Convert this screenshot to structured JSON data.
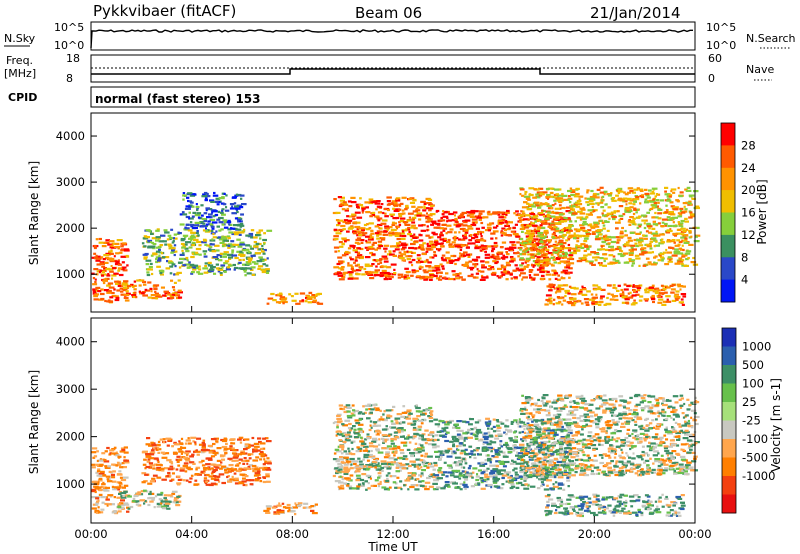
{
  "header": {
    "radar": "Pykkvibaer (fitACF)",
    "beam": "Beam 06",
    "date": "21/Jan/2014"
  },
  "params": {
    "nsky_label": "N.Sky",
    "nsky_ticks": [
      "10^5",
      "10^0"
    ],
    "nsearch_label": "N.Search",
    "nsearch_ticks": [
      "10^5",
      "10^0"
    ],
    "freq_label_1": "Freq.",
    "freq_label_2": "[MHz]",
    "freq_ticks": [
      "18",
      "8"
    ],
    "nave_label": "Nave",
    "nave_ticks": [
      "60",
      "0"
    ],
    "cpid_label": "CPID",
    "cpid_text": "normal (fast stereo) 153"
  },
  "chart_data": [
    {
      "type": "heatmap",
      "name": "power",
      "ylabel": "Slant Range [km]",
      "yticks": [
        "4000",
        "3000",
        "2000",
        "1000"
      ],
      "ylim": [
        180,
        4500
      ],
      "xlim": [
        0,
        24
      ],
      "xticks": [
        "00:00",
        "04:00",
        "08:00",
        "12:00",
        "16:00",
        "20:00",
        "00:00"
      ],
      "xlabel": "Time UT",
      "colorbar": {
        "label": "Power [dB]",
        "ticks": [
          "28",
          "24",
          "20",
          "16",
          "12",
          "8",
          "4"
        ],
        "colors": [
          "#ff0000",
          "#ff5a00",
          "#ff9200",
          "#f0be00",
          "#86cf3b",
          "#3b9060",
          "#2a48c8",
          "#0016f5"
        ]
      },
      "echo_regions": [
        {
          "t0": 0.0,
          "t1": 1.4,
          "r0": 400,
          "r1": 1800,
          "level": 26
        },
        {
          "t0": 1.0,
          "t1": 3.5,
          "r0": 500,
          "r1": 900,
          "level": 24
        },
        {
          "t0": 2.0,
          "t1": 7.0,
          "r0": 1000,
          "r1": 2000,
          "level": 14
        },
        {
          "t0": 3.5,
          "t1": 6.0,
          "r0": 2000,
          "r1": 2800,
          "level": 8
        },
        {
          "t0": 6.8,
          "t1": 9.0,
          "r0": 380,
          "r1": 620,
          "level": 24
        },
        {
          "t0": 9.6,
          "t1": 13.5,
          "r0": 900,
          "r1": 2700,
          "level": 26
        },
        {
          "t0": 13.5,
          "t1": 19.0,
          "r0": 900,
          "r1": 2400,
          "level": 28
        },
        {
          "t0": 18.0,
          "t1": 23.5,
          "r0": 350,
          "r1": 800,
          "level": 24
        },
        {
          "t0": 17.0,
          "t1": 24.0,
          "r0": 1200,
          "r1": 2900,
          "level": 20
        }
      ]
    },
    {
      "type": "heatmap",
      "name": "velocity",
      "ylabel": "Slant Range [km]",
      "yticks": [
        "4000",
        "3000",
        "2000",
        "1000"
      ],
      "ylim": [
        180,
        4500
      ],
      "xlim": [
        0,
        24
      ],
      "xticks": [
        "00:00",
        "04:00",
        "08:00",
        "12:00",
        "16:00",
        "20:00",
        "00:00"
      ],
      "xlabel": "Time UT",
      "colorbar": {
        "label": "Velocity [m s-1]",
        "ticks": [
          "1000",
          "500",
          "100",
          "25",
          "-25",
          "-100",
          "-500",
          "-1000"
        ],
        "colors": [
          "#1b2fb5",
          "#2b5fae",
          "#3d8f66",
          "#67c04b",
          "#a6e07a",
          "#c8c8c0",
          "#ffa64d",
          "#ff7f00",
          "#f44010",
          "#e81010"
        ]
      },
      "echo_regions": [
        {
          "t0": 0.0,
          "t1": 1.4,
          "r0": 400,
          "r1": 1800,
          "level": -200
        },
        {
          "t0": 1.0,
          "t1": 3.5,
          "r0": 500,
          "r1": 900,
          "level": 0
        },
        {
          "t0": 2.0,
          "t1": 7.0,
          "r0": 1000,
          "r1": 2000,
          "level": -300
        },
        {
          "t0": 6.8,
          "t1": 9.0,
          "r0": 380,
          "r1": 620,
          "level": -200
        },
        {
          "t0": 9.6,
          "t1": 13.5,
          "r0": 900,
          "r1": 2700,
          "level": 0
        },
        {
          "t0": 13.5,
          "t1": 19.0,
          "r0": 900,
          "r1": 2400,
          "level": 150
        },
        {
          "t0": 18.0,
          "t1": 23.5,
          "r0": 350,
          "r1": 800,
          "level": 120
        },
        {
          "t0": 17.0,
          "t1": 24.0,
          "r0": 1200,
          "r1": 2900,
          "level": 0
        }
      ]
    }
  ]
}
